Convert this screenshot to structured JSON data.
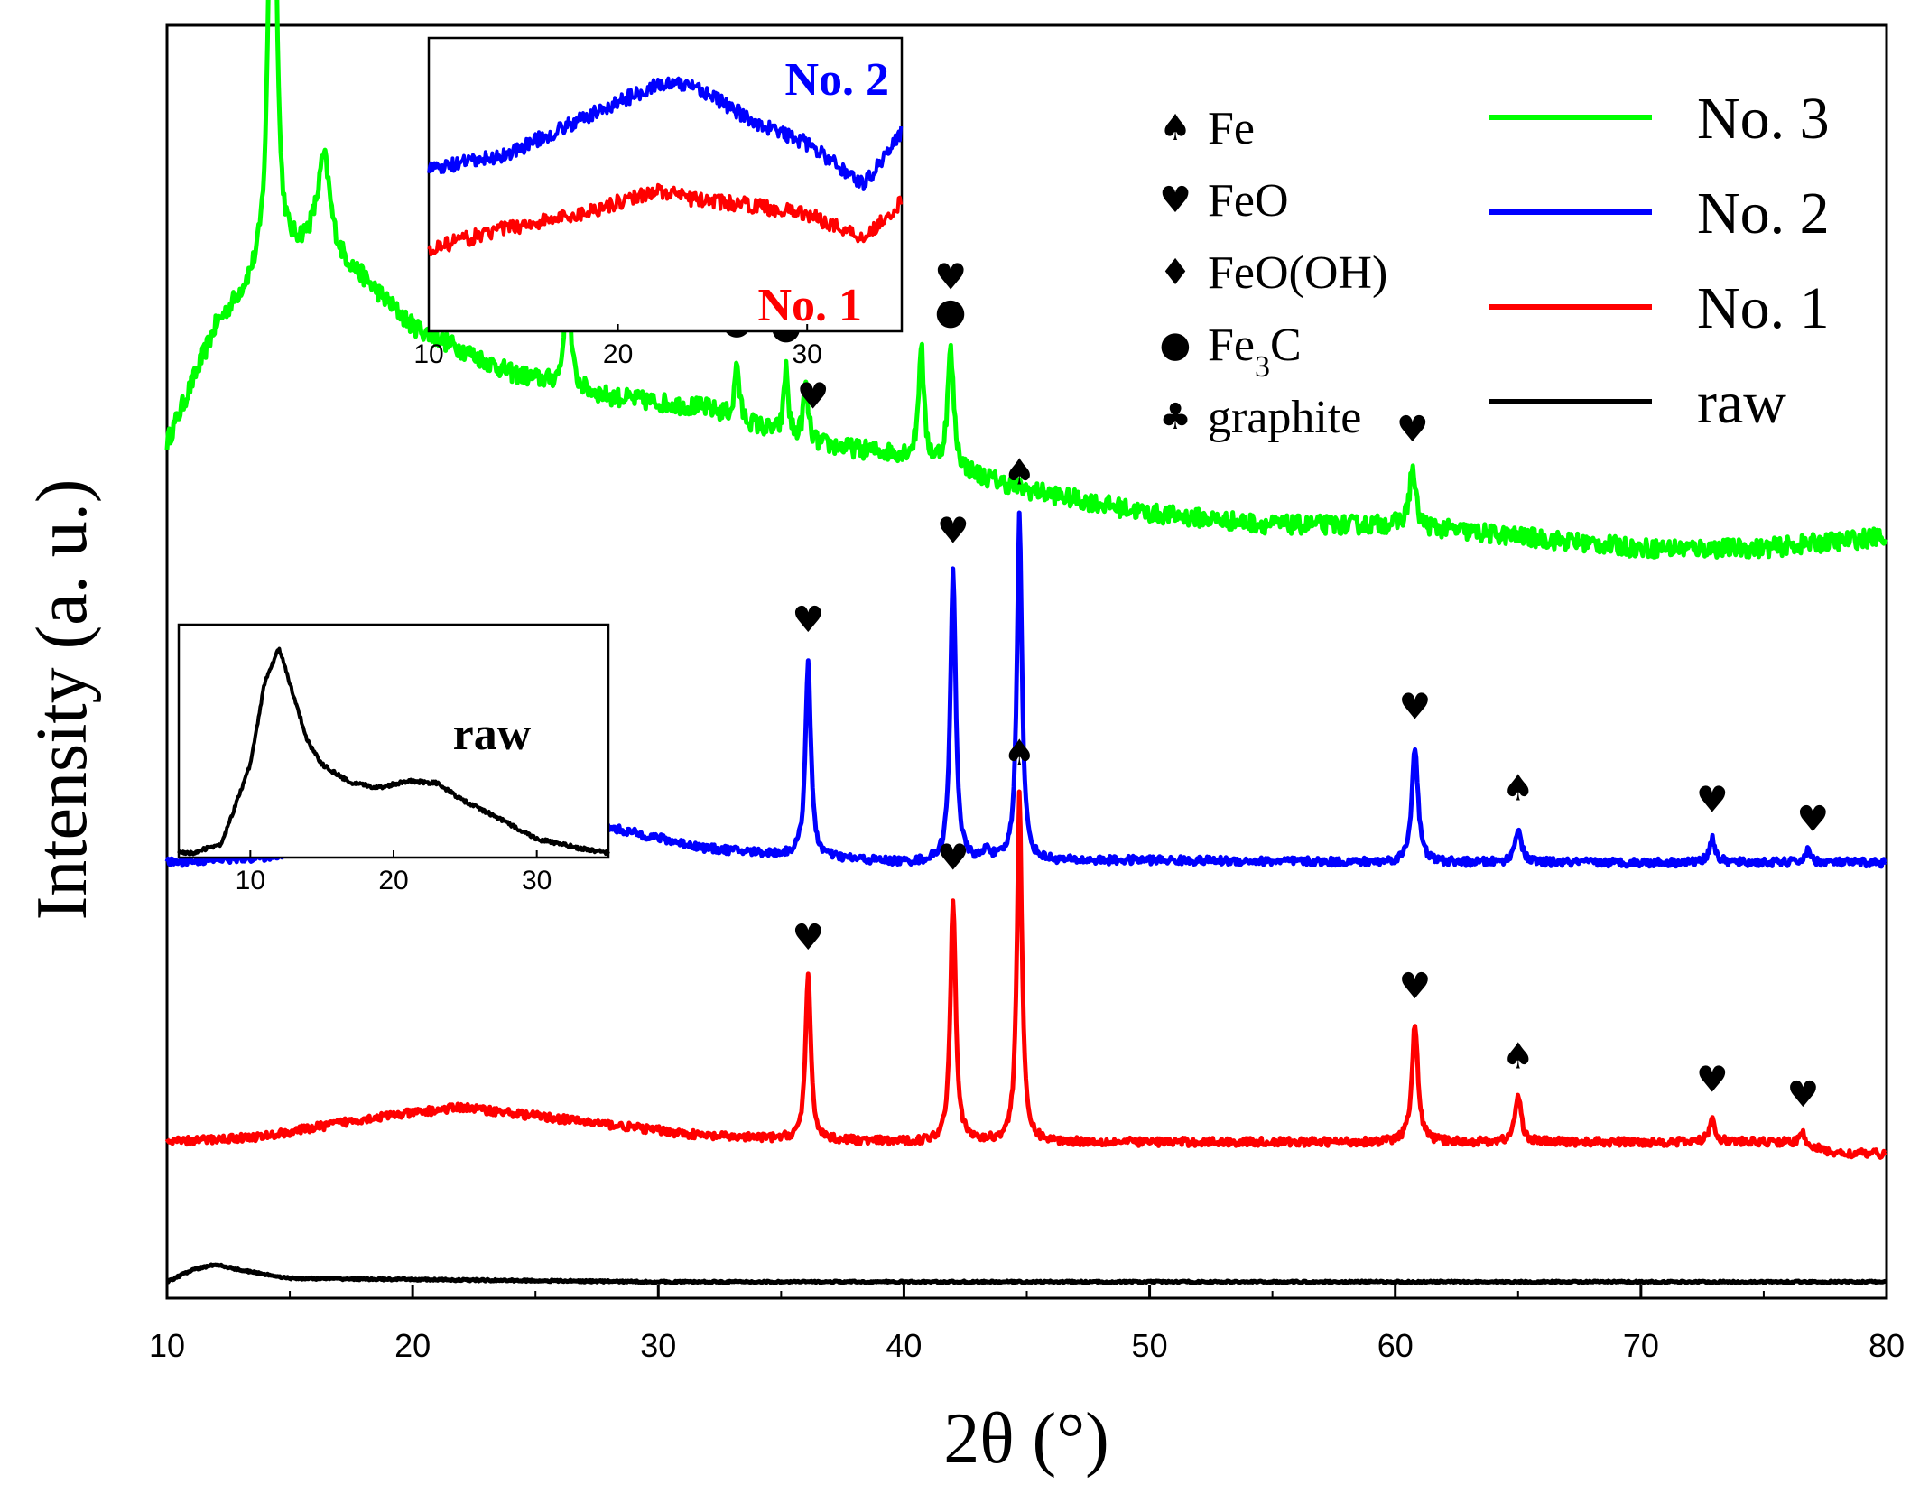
{
  "chart_data": [
    {
      "type": "line",
      "title": "",
      "xlabel": "2θ (°)",
      "ylabel": "Intensity (a. u.)",
      "xlim": [
        10,
        80
      ],
      "xticks": [
        "10",
        "20",
        "30",
        "40",
        "50",
        "60",
        "70",
        "80"
      ],
      "grid": false,
      "legend_position": "top-right",
      "series": [
        {
          "name": "No. 3",
          "color": "#00ff00",
          "offset": 0.72,
          "baseline": [
            [
              10,
              0.0
            ],
            [
              12,
              0.1
            ],
            [
              14,
              0.15
            ],
            [
              16,
              0.17
            ],
            [
              18,
              0.14
            ],
            [
              20,
              0.1
            ],
            [
              24,
              0.06
            ],
            [
              28,
              0.04
            ],
            [
              32,
              0.03
            ],
            [
              36,
              0.0
            ],
            [
              40,
              -0.01
            ],
            [
              45,
              -0.04
            ],
            [
              50,
              -0.06
            ],
            [
              55,
              -0.07
            ],
            [
              60,
              -0.07
            ],
            [
              65,
              -0.08
            ],
            [
              70,
              -0.09
            ],
            [
              75,
              -0.09
            ],
            [
              80,
              -0.08
            ]
          ],
          "peaks": [
            [
              14.3,
              0.55,
              0.15
            ],
            [
              16.4,
              0.08,
              0.3
            ],
            [
              26.3,
              0.12,
              0.12
            ],
            [
              33.2,
              0.05,
              0.1
            ],
            [
              35.2,
              0.06,
              0.1
            ],
            [
              36.0,
              0.05,
              0.12
            ],
            [
              40.7,
              0.1,
              0.12
            ],
            [
              41.9,
              0.1,
              0.15
            ],
            [
              60.7,
              0.05,
              0.15
            ]
          ]
        },
        {
          "name": "No. 2",
          "color": "#0000ff",
          "offset": 0.36,
          "baseline": [
            [
              10,
              0.0
            ],
            [
              14,
              0.005
            ],
            [
              18,
              0.02
            ],
            [
              22,
              0.045
            ],
            [
              24,
              0.048
            ],
            [
              28,
              0.03
            ],
            [
              32,
              0.012
            ],
            [
              36,
              0.005
            ],
            [
              40,
              0.0
            ],
            [
              50,
              0.002
            ],
            [
              60,
              0.0
            ],
            [
              70,
              0.0
            ],
            [
              80,
              0.0
            ]
          ],
          "peaks": [
            [
              36.1,
              0.17,
              0.13
            ],
            [
              42.0,
              0.25,
              0.13
            ],
            [
              43.4,
              0.01,
              0.15
            ],
            [
              44.7,
              0.3,
              0.12
            ],
            [
              60.8,
              0.1,
              0.15
            ],
            [
              65.0,
              0.03,
              0.15
            ],
            [
              72.9,
              0.02,
              0.15
            ],
            [
              76.8,
              0.01,
              0.15
            ]
          ]
        },
        {
          "name": "No. 1",
          "color": "#ff0000",
          "offset": 0.12,
          "baseline": [
            [
              10,
              0.0
            ],
            [
              14,
              0.005
            ],
            [
              18,
              0.02
            ],
            [
              22,
              0.03
            ],
            [
              24,
              0.025
            ],
            [
              28,
              0.015
            ],
            [
              32,
              0.005
            ],
            [
              36,
              0.002
            ],
            [
              40,
              0.0
            ],
            [
              50,
              0.0
            ],
            [
              60,
              0.0
            ],
            [
              70,
              0.0
            ],
            [
              76,
              0.0
            ],
            [
              78,
              -0.01
            ],
            [
              80,
              -0.01
            ]
          ],
          "peaks": [
            [
              36.1,
              0.14,
              0.13
            ],
            [
              42.0,
              0.21,
              0.13
            ],
            [
              44.7,
              0.3,
              0.12
            ],
            [
              60.8,
              0.1,
              0.15
            ],
            [
              65.0,
              0.04,
              0.15
            ],
            [
              72.9,
              0.02,
              0.15
            ],
            [
              76.6,
              0.01,
              0.15
            ]
          ]
        },
        {
          "name": "raw",
          "color": "#000000",
          "offset": 0.0,
          "baseline": [
            [
              10,
              0.0
            ],
            [
              11,
              0.01
            ],
            [
              12,
              0.015
            ],
            [
              13,
              0.01
            ],
            [
              15,
              0.003
            ],
            [
              20,
              0.002
            ],
            [
              25,
              0.001
            ],
            [
              30,
              0.0
            ],
            [
              80,
              0.0
            ]
          ],
          "peaks": []
        }
      ]
    },
    {
      "type": "line",
      "panel": "inset-top",
      "xlim": [
        10,
        35
      ],
      "xticks": [
        "10",
        "20",
        "30"
      ],
      "series": [
        {
          "name": "No. 2",
          "color": "#0000ff",
          "points": [
            [
              10,
              0.55
            ],
            [
              14,
              0.6
            ],
            [
              18,
              0.72
            ],
            [
              22,
              0.84
            ],
            [
              24,
              0.84
            ],
            [
              27,
              0.72
            ],
            [
              30,
              0.64
            ],
            [
              33,
              0.5
            ],
            [
              35,
              0.68
            ]
          ]
        },
        {
          "name": "No. 1",
          "color": "#ff0000",
          "points": [
            [
              10,
              0.28
            ],
            [
              14,
              0.35
            ],
            [
              18,
              0.4
            ],
            [
              22,
              0.48
            ],
            [
              24,
              0.45
            ],
            [
              27,
              0.43
            ],
            [
              30,
              0.4
            ],
            [
              33,
              0.32
            ],
            [
              35,
              0.44
            ]
          ]
        }
      ]
    },
    {
      "type": "line",
      "panel": "inset-bottom",
      "xlim": [
        5,
        35
      ],
      "xticks": [
        "10",
        "20",
        "30"
      ],
      "series": [
        {
          "name": "raw",
          "color": "#000000",
          "points": [
            [
              6,
              0.02
            ],
            [
              8,
              0.06
            ],
            [
              10,
              0.4
            ],
            [
              11,
              0.75
            ],
            [
              12,
              0.9
            ],
            [
              13,
              0.7
            ],
            [
              14,
              0.5
            ],
            [
              15,
              0.4
            ],
            [
              17,
              0.32
            ],
            [
              19,
              0.3
            ],
            [
              21,
              0.33
            ],
            [
              23,
              0.32
            ],
            [
              25,
              0.24
            ],
            [
              27,
              0.18
            ],
            [
              30,
              0.08
            ],
            [
              33,
              0.04
            ],
            [
              35,
              0.02
            ]
          ]
        }
      ]
    }
  ],
  "phase_legend": [
    {
      "symbol": "♠",
      "label": "Fe"
    },
    {
      "symbol": "♥",
      "label": "FeO"
    },
    {
      "symbol": "♦",
      "label": "FeO(OH)"
    },
    {
      "symbol": "●",
      "label": "Fe",
      "sub": "3",
      "suffix": "C"
    },
    {
      "symbol": "♣",
      "label": "graphite"
    }
  ],
  "peak_markers": [
    {
      "x": 14.3,
      "series": "No. 3",
      "symbols": [
        "♦"
      ]
    },
    {
      "x": 26.3,
      "series": "No. 3",
      "symbols": [
        "●",
        "♦",
        "♣"
      ]
    },
    {
      "x": 33.2,
      "series": "No. 3",
      "symbols": [
        "●"
      ]
    },
    {
      "x": 35.2,
      "series": "No. 3",
      "symbols": [
        "●"
      ]
    },
    {
      "x": 36.3,
      "series": "No. 3",
      "symbols": [
        "♥"
      ]
    },
    {
      "x": 41.9,
      "series": "No. 3",
      "symbols": [
        "●",
        "♥"
      ]
    },
    {
      "x": 60.7,
      "series": "No. 3",
      "symbols": [
        "♥"
      ]
    },
    {
      "x": 36.1,
      "series": "No. 2",
      "symbols": [
        "♥"
      ]
    },
    {
      "x": 42.0,
      "series": "No. 2",
      "symbols": [
        "♥"
      ]
    },
    {
      "x": 44.7,
      "series": "No. 2",
      "symbols": [
        "♠"
      ]
    },
    {
      "x": 60.8,
      "series": "No. 2",
      "symbols": [
        "♥"
      ]
    },
    {
      "x": 65.0,
      "series": "No. 2",
      "symbols": [
        "♠"
      ]
    },
    {
      "x": 72.9,
      "series": "No. 2",
      "symbols": [
        "♥"
      ]
    },
    {
      "x": 77.0,
      "series": "No. 2",
      "symbols": [
        "♥"
      ]
    },
    {
      "x": 36.1,
      "series": "No. 1",
      "symbols": [
        "♥"
      ]
    },
    {
      "x": 42.0,
      "series": "No. 1",
      "symbols": [
        "♥"
      ]
    },
    {
      "x": 44.7,
      "series": "No. 1",
      "symbols": [
        "♠"
      ]
    },
    {
      "x": 60.8,
      "series": "No. 1",
      "symbols": [
        "♥"
      ]
    },
    {
      "x": 65.0,
      "series": "No. 1",
      "symbols": [
        "♠"
      ]
    },
    {
      "x": 72.9,
      "series": "No. 1",
      "symbols": [
        "♥"
      ]
    },
    {
      "x": 76.6,
      "series": "No. 1",
      "symbols": [
        "♥"
      ]
    }
  ],
  "inset_labels": {
    "top_blue": "No. 2",
    "top_red": "No. 1",
    "bottom_black": "raw"
  }
}
